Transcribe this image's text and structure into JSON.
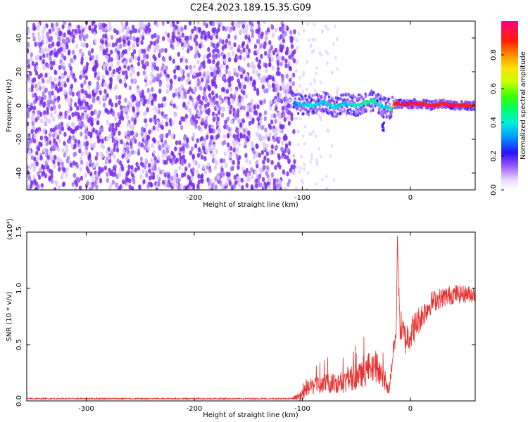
{
  "title": "C2E4.2023.189.15.35.G09",
  "chart_data": [
    {
      "type": "heatmap",
      "xlabel": "Height of straight line (km)",
      "ylabel": "Frequency (Hz)",
      "xlim": [
        -355,
        60
      ],
      "ylim": [
        -50,
        50
      ],
      "xticks": [
        -300,
        -200,
        -100,
        0
      ],
      "yticks": [
        -40,
        -20,
        0,
        20,
        40
      ],
      "grid": false,
      "noise_region_x": [
        -355,
        -107
      ],
      "signal_track": {
        "x": [
          -108,
          -100,
          -90,
          -80,
          -70,
          -60,
          -50,
          -40,
          -35,
          -30,
          -25,
          -22,
          -18,
          -15,
          -10,
          0,
          10,
          20,
          30,
          40,
          50,
          60
        ],
        "freq": [
          1,
          1,
          0,
          2,
          -1,
          1,
          0,
          2,
          3,
          1,
          -1,
          -1,
          -2,
          1,
          1,
          1,
          1,
          0,
          1,
          0,
          0,
          0
        ],
        "amplitude": [
          0.3,
          0.35,
          0.4,
          0.35,
          0.4,
          0.35,
          0.4,
          0.45,
          0.45,
          0.4,
          0.4,
          0.35,
          0.4,
          0.9,
          0.9,
          0.95,
          0.9,
          0.95,
          0.9,
          0.95,
          0.9,
          0.9
        ]
      },
      "side_feature": {
        "x": -25,
        "freq": [
          -15,
          -10
        ]
      },
      "colorbar": {
        "label": "Normalized spectral amplitude",
        "range": [
          0,
          1
        ],
        "ticks": [
          "0.0",
          "0.2",
          "0.4",
          "0.6",
          "0.8"
        ]
      }
    },
    {
      "type": "line",
      "xlabel": "Height of straight line (km)",
      "ylabel": "SNR (10 * v/v)",
      "y_multiplier": "(x10⁴)",
      "xlim": [
        -355,
        60
      ],
      "ylim": [
        0,
        1.5
      ],
      "xticks": [
        -300,
        -200,
        -100,
        0
      ],
      "yticks": [
        "0.0",
        "0.5",
        "1.0",
        "1.5"
      ],
      "grid": false,
      "line_color": "#e83030",
      "series": [
        {
          "x": [
            -355,
            -300,
            -200,
            -110,
            -100,
            -95,
            -80,
            -60,
            -40,
            -30,
            -20,
            -15,
            -13,
            -12,
            -10,
            -5,
            0,
            10,
            20,
            30,
            40,
            50,
            60
          ],
          "y": [
            0.02,
            0.02,
            0.02,
            0.02,
            0.05,
            0.12,
            0.15,
            0.17,
            0.25,
            0.3,
            0.08,
            0.5,
            0.6,
            1.48,
            0.7,
            0.55,
            0.6,
            0.75,
            0.88,
            0.92,
            0.95,
            0.95,
            0.95
          ],
          "noise": [
            0.006,
            0.006,
            0.006,
            0.006,
            0.05,
            0.07,
            0.09,
            0.1,
            0.12,
            0.13,
            0.05,
            0.1,
            0.1,
            0.05,
            0.15,
            0.15,
            0.15,
            0.12,
            0.1,
            0.09,
            0.09,
            0.08,
            0.08
          ]
        }
      ]
    }
  ]
}
